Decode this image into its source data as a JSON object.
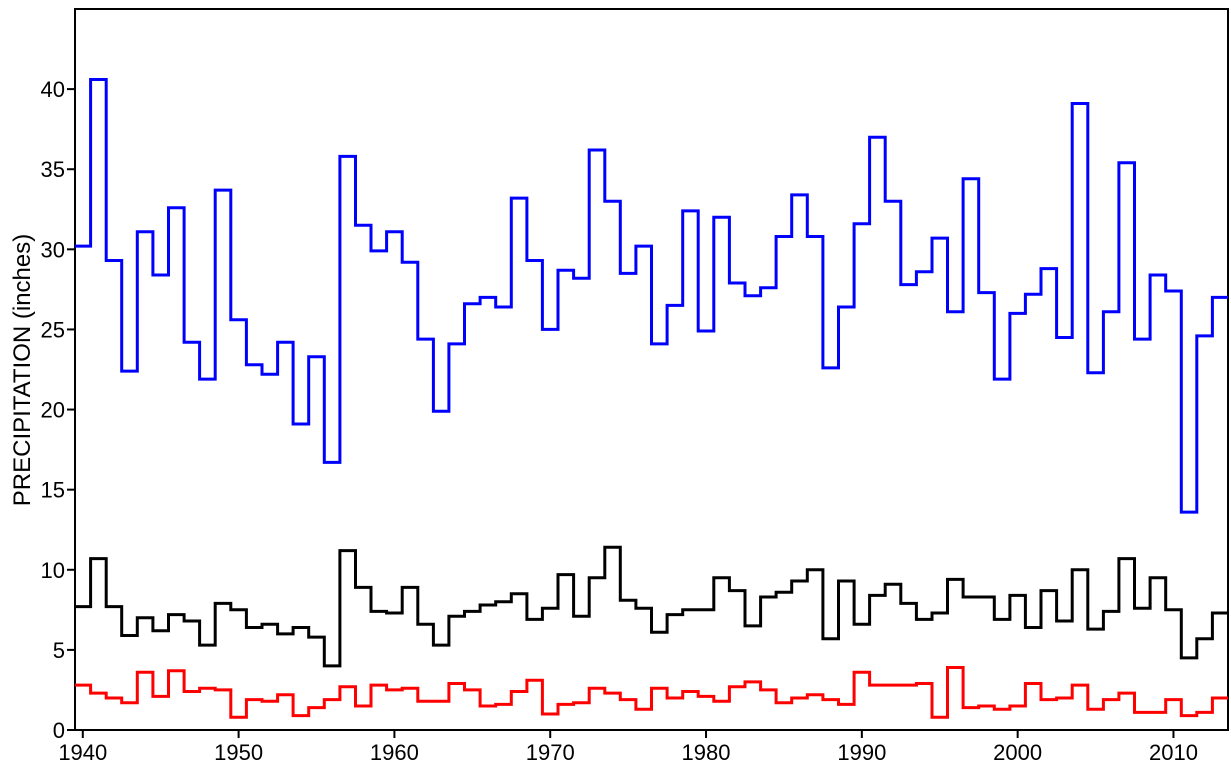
{
  "chart_data": {
    "type": "line",
    "step": true,
    "ylabel": "PRECIPITATION (inches)",
    "xlabel": "",
    "xlim": [
      1939.5,
      2013.5
    ],
    "ylim": [
      0,
      45
    ],
    "xticks": [
      "1940",
      "1950",
      "1960",
      "1970",
      "1980",
      "1990",
      "2000",
      "2010"
    ],
    "yticks": [
      "0",
      "5",
      "10",
      "15",
      "20",
      "25",
      "30",
      "35",
      "40"
    ],
    "grid": false,
    "legend": "none",
    "x_start": 1939.5,
    "series": [
      {
        "color": "#0000ff",
        "values": [
          30.2,
          40.6,
          29.3,
          22.4,
          31.1,
          28.4,
          32.6,
          24.2,
          21.9,
          33.7,
          25.6,
          22.8,
          22.2,
          24.2,
          19.1,
          23.3,
          16.7,
          35.8,
          31.5,
          29.9,
          31.1,
          29.2,
          24.4,
          19.9,
          24.1,
          26.6,
          27.0,
          26.4,
          33.2,
          29.3,
          25.0,
          28.7,
          28.2,
          36.2,
          33.0,
          28.5,
          30.2,
          24.1,
          26.5,
          32.4,
          24.9,
          32.0,
          27.9,
          27.1,
          27.6,
          30.8,
          33.4,
          30.8,
          22.6,
          26.4,
          31.6,
          37.0,
          33.0,
          27.8,
          28.6,
          30.7,
          26.1,
          34.4,
          27.3,
          21.9,
          26.0,
          27.2,
          28.8,
          24.5,
          39.1,
          22.3,
          26.1,
          35.4,
          24.4,
          28.4,
          27.4,
          13.6,
          24.6,
          27.0
        ]
      },
      {
        "color": "#000000",
        "values": [
          7.7,
          10.7,
          7.7,
          5.9,
          7.0,
          6.2,
          7.2,
          6.8,
          5.3,
          7.9,
          7.5,
          6.4,
          6.6,
          6.0,
          6.4,
          5.8,
          4.0,
          11.2,
          8.9,
          7.4,
          7.3,
          8.9,
          6.6,
          5.3,
          7.1,
          7.4,
          7.8,
          8.0,
          8.5,
          6.9,
          7.6,
          9.7,
          7.1,
          9.5,
          11.4,
          8.1,
          7.6,
          6.1,
          7.2,
          7.5,
          7.5,
          9.5,
          8.7,
          6.5,
          8.3,
          8.6,
          9.3,
          10.0,
          5.7,
          9.3,
          6.6,
          8.4,
          9.1,
          7.9,
          6.9,
          7.3,
          9.4,
          8.3,
          8.3,
          6.9,
          8.4,
          6.4,
          8.7,
          6.8,
          10.0,
          6.3,
          7.4,
          10.7,
          7.6,
          9.5,
          7.5,
          4.5,
          5.7,
          7.3
        ]
      },
      {
        "color": "#ff0000",
        "values": [
          2.8,
          2.3,
          2.0,
          1.7,
          3.6,
          2.1,
          3.7,
          2.4,
          2.6,
          2.5,
          0.8,
          1.9,
          1.8,
          2.2,
          0.9,
          1.4,
          1.9,
          2.7,
          1.5,
          2.8,
          2.5,
          2.6,
          1.8,
          1.8,
          2.9,
          2.5,
          1.5,
          1.6,
          2.4,
          3.1,
          1.0,
          1.6,
          1.7,
          2.6,
          2.3,
          1.9,
          1.3,
          2.6,
          2.0,
          2.4,
          2.1,
          1.8,
          2.7,
          3.0,
          2.5,
          1.7,
          2.0,
          2.2,
          1.9,
          1.6,
          3.6,
          2.8,
          2.8,
          2.8,
          2.9,
          0.8,
          3.9,
          1.4,
          1.5,
          1.3,
          1.5,
          2.9,
          1.9,
          2.0,
          2.8,
          1.3,
          1.9,
          2.3,
          1.1,
          1.1,
          1.9,
          0.9,
          1.1,
          2.0
        ]
      }
    ]
  }
}
